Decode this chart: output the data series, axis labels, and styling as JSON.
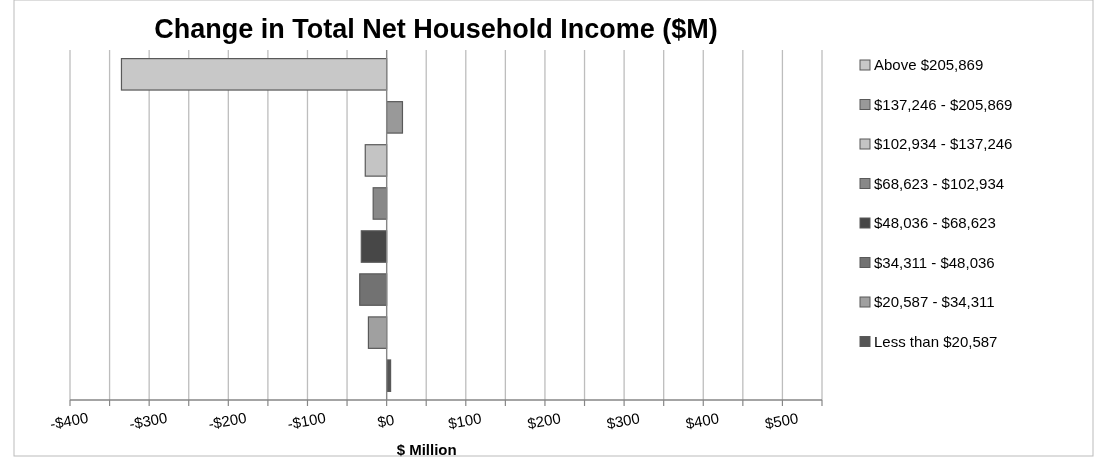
{
  "chart_data": {
    "type": "bar",
    "orientation": "horizontal",
    "title": "Change in Total Net Household Income ($M)",
    "xlabel": "$ Million",
    "categories": [
      null,
      null,
      null,
      null,
      null,
      null,
      null,
      null
    ],
    "series": [
      {
        "name": "Above $205,869",
        "color": "#c8c8c8",
        "values": [
          -335,
          null,
          null,
          null,
          null,
          null,
          null,
          null
        ]
      },
      {
        "name": "$137,246 - $205,869",
        "color": "#999999",
        "values": [
          null,
          20,
          null,
          null,
          null,
          null,
          null,
          null
        ]
      },
      {
        "name": "$102,934 - $137,246",
        "color": "#c4c4c4",
        "values": [
          null,
          null,
          -27,
          null,
          null,
          null,
          null,
          null
        ]
      },
      {
        "name": "$68,623 - $102,934",
        "color": "#888888",
        "values": [
          null,
          null,
          null,
          -17,
          null,
          null,
          null,
          null
        ]
      },
      {
        "name": "$48,036 - $68,623",
        "color": "#474747",
        "values": [
          null,
          null,
          null,
          null,
          -32,
          null,
          null,
          null
        ]
      },
      {
        "name": "$34,311 - $48,036",
        "color": "#727272",
        "values": [
          null,
          null,
          null,
          null,
          null,
          -34,
          null,
          null
        ]
      },
      {
        "name": "$20,587 - $34,311",
        "color": "#a0a0a0",
        "values": [
          null,
          null,
          null,
          null,
          null,
          null,
          -23,
          null
        ]
      },
      {
        "name": "Less than $20,587",
        "color": "#555555",
        "values": [
          null,
          null,
          null,
          null,
          null,
          null,
          null,
          5
        ]
      }
    ],
    "xlim": [
      -400,
      550
    ],
    "xticks": [
      {
        "value": -400,
        "label": "-$400"
      },
      {
        "value": -350,
        "label": null
      },
      {
        "value": -300,
        "label": "-$300"
      },
      {
        "value": -250,
        "label": null
      },
      {
        "value": -200,
        "label": "-$200"
      },
      {
        "value": -150,
        "label": null
      },
      {
        "value": -100,
        "label": "-$100"
      },
      {
        "value": -50,
        "label": null
      },
      {
        "value": 0,
        "label": "$0"
      },
      {
        "value": 50,
        "label": null
      },
      {
        "value": 100,
        "label": "$100"
      },
      {
        "value": 150,
        "label": null
      },
      {
        "value": 200,
        "label": "$200"
      },
      {
        "value": 250,
        "label": null
      },
      {
        "value": 300,
        "label": "$300"
      },
      {
        "value": 350,
        "label": null
      },
      {
        "value": 400,
        "label": "$400"
      },
      {
        "value": 450,
        "label": null
      },
      {
        "value": 500,
        "label": "$500"
      },
      {
        "value": 550,
        "label": null
      }
    ],
    "grid": "x",
    "legend": "right"
  }
}
